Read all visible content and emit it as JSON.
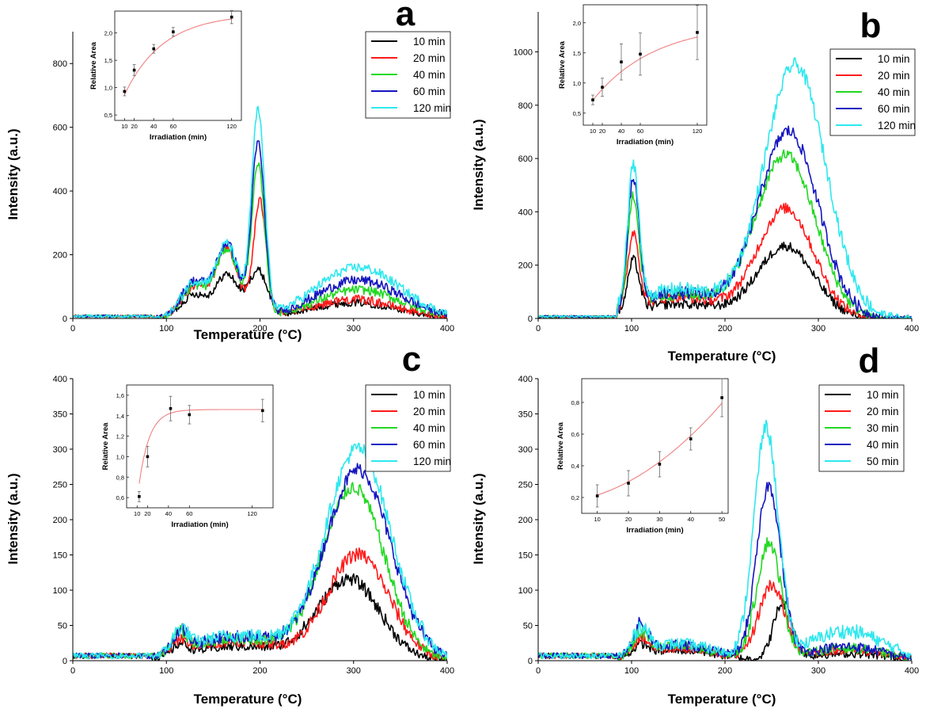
{
  "figure": {
    "xlabel": "Temperature (°C)",
    "ylabel": "Intensity (a.u.)"
  },
  "chart_data": [
    {
      "id": "a",
      "type": "line",
      "label": "a",
      "xlabel": "Temperature (°C)",
      "ylabel": "Intensity (a.u.)",
      "xlim": [
        0,
        400
      ],
      "ylim": [
        0,
        900
      ],
      "xticks": [
        0,
        100,
        200,
        300,
        400
      ],
      "yticks": [
        0,
        200,
        400,
        600,
        800
      ],
      "legend": "top-right",
      "series": [
        {
          "name": "10 min",
          "color": "#000000",
          "peaks": [
            [
              130,
              14,
              75
            ],
            [
              165,
              12,
              135
            ],
            [
              198,
              10,
              145
            ],
            [
              300,
              45,
              50
            ]
          ],
          "noise": 12
        },
        {
          "name": "20 min",
          "color": "#ff1a1a",
          "peaks": [
            [
              130,
              14,
              100
            ],
            [
              165,
              12,
              215
            ],
            [
              200,
              7,
              360
            ],
            [
              300,
              45,
              60
            ]
          ],
          "noise": 14
        },
        {
          "name": "40 min",
          "color": "#22d822",
          "peaks": [
            [
              130,
              14,
              100
            ],
            [
              165,
              12,
              215
            ],
            [
              198,
              7,
              470
            ],
            [
              305,
              45,
              90
            ]
          ],
          "noise": 14
        },
        {
          "name": "60 min",
          "color": "#1515c0",
          "peaks": [
            [
              130,
              14,
              115
            ],
            [
              165,
              12,
              230
            ],
            [
              198,
              7,
              540
            ],
            [
              305,
              45,
              120
            ]
          ],
          "noise": 15
        },
        {
          "name": "120 min",
          "color": "#2ee8ee",
          "peaks": [
            [
              130,
              14,
              115
            ],
            [
              165,
              12,
              230
            ],
            [
              198,
              7,
              640
            ],
            [
              305,
              45,
              160
            ]
          ],
          "noise": 15
        }
      ],
      "inset": {
        "xlabel": "Irradiation (min)",
        "ylabel": "Relative Area",
        "xlim": [
          0,
          130
        ],
        "ylim": [
          0.4,
          2.4
        ],
        "xticks": [
          10,
          20,
          40,
          60,
          120
        ],
        "yticks": [
          0.5,
          1.0,
          1.5,
          2.0
        ],
        "yticklabels": [
          "0,5",
          "1,0",
          "1,5",
          "2,0"
        ],
        "x": [
          10,
          20,
          40,
          60,
          120
        ],
        "y": [
          0.93,
          1.32,
          1.71,
          2.02,
          2.29
        ],
        "err": [
          0.08,
          0.1,
          0.08,
          0.08,
          0.12
        ],
        "fit": {
          "a": 2.35,
          "b": 1.9,
          "tau": 40
        }
      }
    },
    {
      "id": "b",
      "type": "line",
      "label": "b",
      "xlabel": "Temperature (°C)",
      "ylabel": "Intensity (a.u.)",
      "xlim": [
        0,
        400
      ],
      "ylim": [
        0,
        1150
      ],
      "xticks": [
        0,
        100,
        200,
        300,
        400
      ],
      "yticks": [
        0,
        200,
        400,
        600,
        800,
        1000
      ],
      "legend": "top-right",
      "series": [
        {
          "name": "10 min",
          "color": "#000000",
          "peaks": [
            [
              102,
              6,
              190
            ],
            [
              150,
              45,
              55
            ],
            [
              265,
              30,
              270
            ]
          ],
          "noise": 18
        },
        {
          "name": "20 min",
          "color": "#ff1a1a",
          "peaks": [
            [
              102,
              6,
              280
            ],
            [
              150,
              45,
              80
            ],
            [
              265,
              30,
              410
            ]
          ],
          "noise": 20
        },
        {
          "name": "40 min",
          "color": "#22d822",
          "peaks": [
            [
              102,
              6,
              410
            ],
            [
              150,
              45,
              90
            ],
            [
              265,
              32,
              610
            ]
          ],
          "noise": 22
        },
        {
          "name": "60 min",
          "color": "#1515c0",
          "peaks": [
            [
              102,
              6,
              470
            ],
            [
              150,
              45,
              95
            ],
            [
              268,
              32,
              700
            ]
          ],
          "noise": 24
        },
        {
          "name": "120 min",
          "color": "#2ee8ee",
          "peaks": [
            [
              102,
              6,
              520
            ],
            [
              150,
              45,
              110
            ],
            [
              275,
              33,
              950
            ]
          ],
          "noise": 26
        }
      ],
      "inset": {
        "xlabel": "Irradiation (min)",
        "ylabel": "Relative Area",
        "xlim": [
          0,
          130
        ],
        "ylim": [
          0.3,
          2.3
        ],
        "xticks": [
          10,
          20,
          40,
          60,
          120
        ],
        "yticks": [
          0.5,
          1.0,
          1.5,
          2.0
        ],
        "yticklabels": [
          "0,5",
          "1,0",
          "1,5",
          "2,0"
        ],
        "x": [
          10,
          20,
          40,
          60,
          120
        ],
        "y": [
          0.72,
          0.93,
          1.35,
          1.48,
          1.84
        ],
        "err": [
          0.08,
          0.15,
          0.3,
          0.35,
          0.45
        ],
        "fit": {
          "a": 2.0,
          "b": 1.5,
          "tau": 65
        }
      }
    },
    {
      "id": "c",
      "type": "line",
      "label": "c",
      "xlabel": "Temperature (°C)",
      "ylabel": "Intensity (a.u.)",
      "xlim": [
        0,
        400
      ],
      "ylim": [
        0,
        400
      ],
      "xticks": [
        0,
        100,
        200,
        300,
        400
      ],
      "yticks": [
        0,
        50,
        100,
        150,
        200,
        250,
        300,
        350,
        400
      ],
      "legend": "top-right",
      "series": [
        {
          "name": "10 min",
          "color": "#000000",
          "peaks": [
            [
              115,
              8,
              15
            ],
            [
              175,
              50,
              20
            ],
            [
              295,
              33,
              115
            ]
          ],
          "noise": 9
        },
        {
          "name": "20 min",
          "color": "#ff1a1a",
          "peaks": [
            [
              115,
              8,
              18
            ],
            [
              175,
              50,
              28
            ],
            [
              305,
              33,
              150
            ]
          ],
          "noise": 10
        },
        {
          "name": "40 min",
          "color": "#22d822",
          "peaks": [
            [
              115,
              8,
              25
            ],
            [
              175,
              50,
              32
            ],
            [
              300,
              33,
              245
            ]
          ],
          "noise": 10
        },
        {
          "name": "60 min",
          "color": "#1515c0",
          "peaks": [
            [
              115,
              8,
              28
            ],
            [
              175,
              50,
              34
            ],
            [
              305,
              35,
              270
            ]
          ],
          "noise": 10
        },
        {
          "name": "120 min",
          "color": "#2ee8ee",
          "peaks": [
            [
              115,
              8,
              30
            ],
            [
              175,
              50,
              36
            ],
            [
              305,
              35,
              300
            ]
          ],
          "noise": 11
        }
      ],
      "inset": {
        "xlabel": "Irradiation (min)",
        "ylabel": "Relative Area",
        "xlim": [
          0,
          140
        ],
        "ylim": [
          0.5,
          1.7
        ],
        "xticks": [
          10,
          20,
          40,
          60,
          120
        ],
        "yticks": [
          0.6,
          0.8,
          1.0,
          1.2,
          1.4,
          1.6
        ],
        "yticklabels": [
          "0,6",
          "0,8",
          "1,0",
          "1,2",
          "1,4",
          "1,6"
        ],
        "x": [
          12,
          20,
          42,
          60,
          130
        ],
        "y": [
          0.61,
          1.0,
          1.47,
          1.41,
          1.45
        ],
        "err": [
          0.05,
          0.1,
          0.12,
          0.09,
          0.11
        ],
        "fit": {
          "a": 1.46,
          "b": 2.4,
          "tau": 10
        }
      }
    },
    {
      "id": "d",
      "type": "line",
      "label": "d",
      "xlabel": "Temperature (°C)",
      "ylabel": "Intensity (a.u.)",
      "xlim": [
        0,
        400
      ],
      "ylim": [
        0,
        400
      ],
      "xticks": [
        0,
        100,
        200,
        300,
        400
      ],
      "yticks": [
        0,
        50,
        100,
        150,
        200,
        250,
        300,
        350,
        400
      ],
      "legend": "top-right",
      "series": [
        {
          "name": "10 min",
          "color": "#000000",
          "peaks": [
            [
              110,
              8,
              15
            ],
            [
              150,
              40,
              15
            ],
            [
              262,
              10,
              80
            ],
            [
              330,
              40,
              10
            ]
          ],
          "noise": 9
        },
        {
          "name": "20 min",
          "color": "#ff1a1a",
          "peaks": [
            [
              110,
              8,
              22
            ],
            [
              150,
              40,
              18
            ],
            [
              250,
              14,
              105
            ],
            [
              330,
              40,
              15
            ]
          ],
          "noise": 9
        },
        {
          "name": "30 min",
          "color": "#22d822",
          "peaks": [
            [
              110,
              8,
              28
            ],
            [
              150,
              40,
              20
            ],
            [
              247,
              13,
              165
            ],
            [
              330,
              40,
              18
            ]
          ],
          "noise": 10
        },
        {
          "name": "40 min",
          "color": "#1515c0",
          "peaks": [
            [
              110,
              8,
              40
            ],
            [
              150,
              40,
              22
            ],
            [
              247,
              13,
              245
            ],
            [
              330,
              40,
              20
            ]
          ],
          "noise": 10
        },
        {
          "name": "50 min",
          "color": "#2ee8ee",
          "peaks": [
            [
              110,
              8,
              35
            ],
            [
              150,
              40,
              24
            ],
            [
              244,
              13,
              325
            ],
            [
              330,
              40,
              42
            ]
          ],
          "noise": 11
        }
      ],
      "inset": {
        "xlabel": "Irradiation (min)",
        "ylabel": "Relative Area",
        "xlim": [
          5,
          52
        ],
        "ylim": [
          0.1,
          0.95
        ],
        "xticks": [
          10,
          20,
          30,
          40,
          50
        ],
        "yticks": [
          0.2,
          0.4,
          0.6,
          0.8
        ],
        "yticklabels": [
          "0,2",
          "0,4",
          "0,6",
          "0,8"
        ],
        "x": [
          10,
          20,
          30,
          40,
          50
        ],
        "y": [
          0.21,
          0.29,
          0.41,
          0.57,
          0.83
        ],
        "err": [
          0.07,
          0.08,
          0.08,
          0.07,
          0.12
        ],
        "fit": {
          "poly": [
            0.17,
            0.0025,
            0.0002
          ]
        }
      }
    }
  ]
}
